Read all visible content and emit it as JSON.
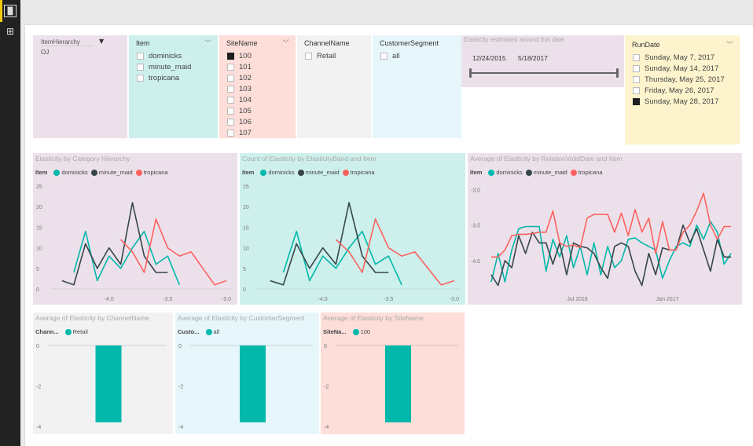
{
  "sidebar": {
    "items": [
      {
        "icon": "report-view-icon"
      },
      {
        "icon": "relationships-view-icon"
      }
    ]
  },
  "colors": {
    "dominicks": "#01b8aa",
    "minute_maid": "#374649",
    "tropicana": "#fd625e",
    "accent": "#f2c811"
  },
  "slicers": {
    "hierarchy": {
      "title": "ItemHierarchy",
      "value": "OJ"
    },
    "item": {
      "title": "Item",
      "options": [
        {
          "label": "dominicks",
          "checked": false
        },
        {
          "label": "minute_maid",
          "checked": false
        },
        {
          "label": "tropicana",
          "checked": false
        }
      ]
    },
    "site": {
      "title": "SiteName",
      "options": [
        {
          "label": "100",
          "checked": true
        },
        {
          "label": "101",
          "checked": false
        },
        {
          "label": "102",
          "checked": false
        },
        {
          "label": "103",
          "checked": false
        },
        {
          "label": "104",
          "checked": false
        },
        {
          "label": "105",
          "checked": false
        },
        {
          "label": "106",
          "checked": false
        },
        {
          "label": "107",
          "checked": false
        }
      ]
    },
    "channel": {
      "title": "ChannelName",
      "options": [
        {
          "label": "Retail",
          "checked": false
        }
      ]
    },
    "segment": {
      "title": "CustomerSegment",
      "options": [
        {
          "label": "all",
          "checked": false
        }
      ]
    },
    "daterange": {
      "title": "Elasticity estimated around this date",
      "start": "12/24/2015",
      "end": "5/18/2017"
    },
    "rundate": {
      "title": "RunDate",
      "options": [
        {
          "label": "Sunday, May 7, 2017",
          "checked": false
        },
        {
          "label": "Sunday, May 14, 2017",
          "checked": false
        },
        {
          "label": "Thursday, May 25, 2017",
          "checked": false
        },
        {
          "label": "Friday, May 26, 2017",
          "checked": false
        },
        {
          "label": "Sunday, May 28, 2017",
          "checked": true
        }
      ]
    }
  },
  "chart_data": [
    {
      "type": "line",
      "title": "Elasticity by Category Hierarchy",
      "legend_title": "Item",
      "legend": "top-left",
      "xlim": [
        -4.5,
        -3.0
      ],
      "ylim": [
        0,
        25
      ],
      "xticks": [
        "-4.0",
        "-3.5",
        "-3.0"
      ],
      "yticks": [
        "0",
        "5",
        "10",
        "15",
        "20",
        "25"
      ],
      "series": [
        {
          "name": "dominicks",
          "x": [
            -4.3,
            -4.2,
            -4.1,
            -4.0,
            -3.9,
            -3.8,
            -3.7,
            -3.6,
            -3.5,
            -3.4
          ],
          "values": [
            4,
            14,
            2,
            8,
            5,
            10,
            14,
            6,
            8,
            1
          ]
        },
        {
          "name": "minute_maid",
          "x": [
            -4.4,
            -4.3,
            -4.2,
            -4.1,
            -4.0,
            -3.9,
            -3.8,
            -3.7,
            -3.6,
            -3.5
          ],
          "values": [
            2,
            1,
            11,
            5,
            10,
            6,
            21,
            8,
            4,
            4
          ]
        },
        {
          "name": "tropicana",
          "x": [
            -3.9,
            -3.8,
            -3.7,
            -3.6,
            -3.5,
            -3.4,
            -3.3,
            -3.2,
            -3.1,
            -3.0
          ],
          "values": [
            12,
            9,
            4,
            17,
            10,
            8,
            9,
            5,
            1,
            2
          ]
        }
      ]
    },
    {
      "type": "line",
      "title": "Count of Elasticity by ElasticityBand and Item",
      "legend_title": "Item",
      "legend": "top-left",
      "xlim": [
        -4.5,
        -3.0
      ],
      "ylim": [
        0,
        25
      ],
      "xticks": [
        "-4.0",
        "-3.5",
        "-3.0"
      ],
      "yticks": [
        "0",
        "5",
        "10",
        "15",
        "20",
        "25"
      ],
      "series": [
        {
          "name": "dominicks",
          "x": [
            -4.3,
            -4.2,
            -4.1,
            -4.0,
            -3.9,
            -3.8,
            -3.7,
            -3.6,
            -3.5,
            -3.4
          ],
          "values": [
            4,
            14,
            2,
            8,
            5,
            10,
            14,
            6,
            8,
            1
          ]
        },
        {
          "name": "minute_maid",
          "x": [
            -4.4,
            -4.3,
            -4.2,
            -4.1,
            -4.0,
            -3.9,
            -3.8,
            -3.7,
            -3.6,
            -3.5
          ],
          "values": [
            2,
            1,
            11,
            5,
            10,
            6,
            21,
            8,
            4,
            4
          ]
        },
        {
          "name": "tropicana",
          "x": [
            -3.9,
            -3.8,
            -3.7,
            -3.6,
            -3.5,
            -3.4,
            -3.3,
            -3.2,
            -3.1,
            -3.0
          ],
          "values": [
            12,
            9,
            4,
            17,
            10,
            8,
            9,
            5,
            1,
            2
          ]
        }
      ]
    },
    {
      "type": "line",
      "title": "Average of Elasticity by RelationValidDate and Item",
      "legend_title": "Item",
      "legend": "top-left",
      "xlim": [
        "2016-01-07",
        "2017-05-11"
      ],
      "ylim": [
        -4.4,
        -2.95
      ],
      "xticks": [
        "Jul 2016",
        "Jan 2017"
      ],
      "xtick_dates": [
        "2016-07-01",
        "2017-01-01"
      ],
      "yticks": [
        "-3.0",
        "-3.5",
        "-4.0"
      ],
      "x_start": "2016-01-07",
      "x_step_days": 14,
      "series": [
        {
          "name": "dominicks",
          "values": [
            -4.3,
            -3.9,
            -4.3,
            -3.85,
            -3.55,
            -3.52,
            -3.52,
            -3.52,
            -4.15,
            -3.7,
            -3.95,
            -3.65,
            -4.1,
            -3.8,
            -4.2,
            -3.75,
            -4.2,
            -3.8,
            -4.1,
            -4.0,
            -3.7,
            -3.68,
            -3.75,
            -3.8,
            -3.85,
            -4.25,
            -4.0,
            -3.8,
            -3.75,
            -3.8,
            -3.5,
            -3.7,
            -3.45,
            -3.6,
            -4.05,
            -3.9
          ]
        },
        {
          "name": "minute_maid",
          "values": [
            -4.2,
            -4.35,
            -4.0,
            -4.1,
            -3.65,
            -3.9,
            -3.6,
            -3.75,
            -3.75,
            -4.05,
            -3.75,
            -4.2,
            -3.75,
            -3.8,
            -3.82,
            -3.9,
            -4.1,
            -4.25,
            -3.8,
            -3.75,
            -3.8,
            -4.15,
            -4.35,
            -3.9,
            -4.2,
            -3.82,
            -3.85,
            -3.85,
            -3.5,
            -3.75,
            -3.55,
            -3.85,
            -4.15,
            -3.7,
            -3.95,
            -3.95
          ]
        },
        {
          "name": "tropicana",
          "values": [
            -3.95,
            -3.95,
            -3.85,
            -3.65,
            -3.63,
            -3.63,
            -3.62,
            -3.6,
            -3.6,
            -3.3,
            -3.75,
            -3.8,
            -3.78,
            -3.82,
            -3.4,
            -3.35,
            -3.35,
            -3.35,
            -3.6,
            -3.33,
            -3.65,
            -3.28,
            -3.6,
            -3.4,
            -3.9,
            -3.45,
            -3.85,
            -3.85,
            -3.6,
            -3.5,
            -3.3,
            -3.05,
            -3.5,
            -3.7,
            -3.52,
            -3.52
          ]
        }
      ]
    },
    {
      "type": "bar",
      "title": "Average of Elasticity by ChannelName",
      "legend_title": "Chann...",
      "categories": [
        "Retail"
      ],
      "values": [
        -3.8
      ],
      "ylim": [
        -4,
        0
      ],
      "yticks": [
        "0",
        "-2",
        "-4"
      ]
    },
    {
      "type": "bar",
      "title": "Average of Elasticity by CustomerSegment",
      "legend_title": "Custo...",
      "categories": [
        "all"
      ],
      "values": [
        -3.8
      ],
      "ylim": [
        -4,
        0
      ],
      "yticks": [
        "0",
        "-2",
        "-4"
      ]
    },
    {
      "type": "bar",
      "title": "Average of Elasticity by SiteName",
      "legend_title": "SiteNa...",
      "categories": [
        "100"
      ],
      "values": [
        -3.8
      ],
      "ylim": [
        -4,
        0
      ],
      "yticks": [
        "0",
        "-2",
        "-4"
      ]
    }
  ]
}
